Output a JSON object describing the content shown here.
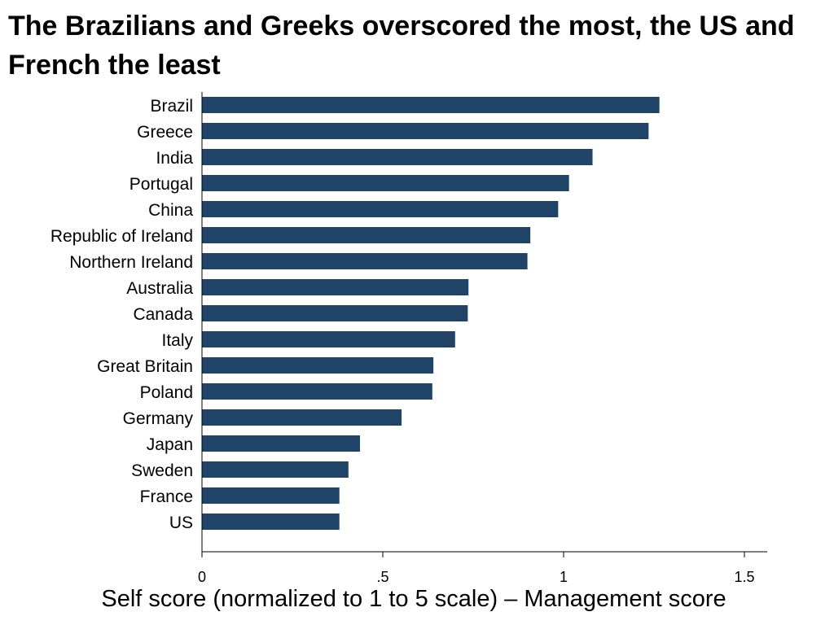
{
  "chart_data": {
    "type": "bar",
    "orientation": "horizontal",
    "title": "The Brazilians and Greeks overscored the most, the US and French the least",
    "xlabel": "Self score (normalized to 1 to 5 scale) – Management score",
    "ylabel": "",
    "categories": [
      "Brazil",
      "Greece",
      "India",
      "Portugal",
      "China",
      "Republic of Ireland",
      "Northern Ireland",
      "Australia",
      "Canada",
      "Italy",
      "Great Britain",
      "Poland",
      "Germany",
      "Japan",
      "Sweden",
      "France",
      "US"
    ],
    "values": [
      1.265,
      1.235,
      1.08,
      1.015,
      0.985,
      0.908,
      0.9,
      0.737,
      0.735,
      0.7,
      0.64,
      0.637,
      0.552,
      0.437,
      0.405,
      0.38,
      0.38
    ],
    "xlim": [
      0,
      1.55
    ],
    "xticks": [
      0,
      0.5,
      1,
      1.5
    ],
    "xtick_labels": [
      "0",
      ".5",
      "1",
      "1.5"
    ],
    "bar_color": "#1f4468",
    "grid": false
  }
}
